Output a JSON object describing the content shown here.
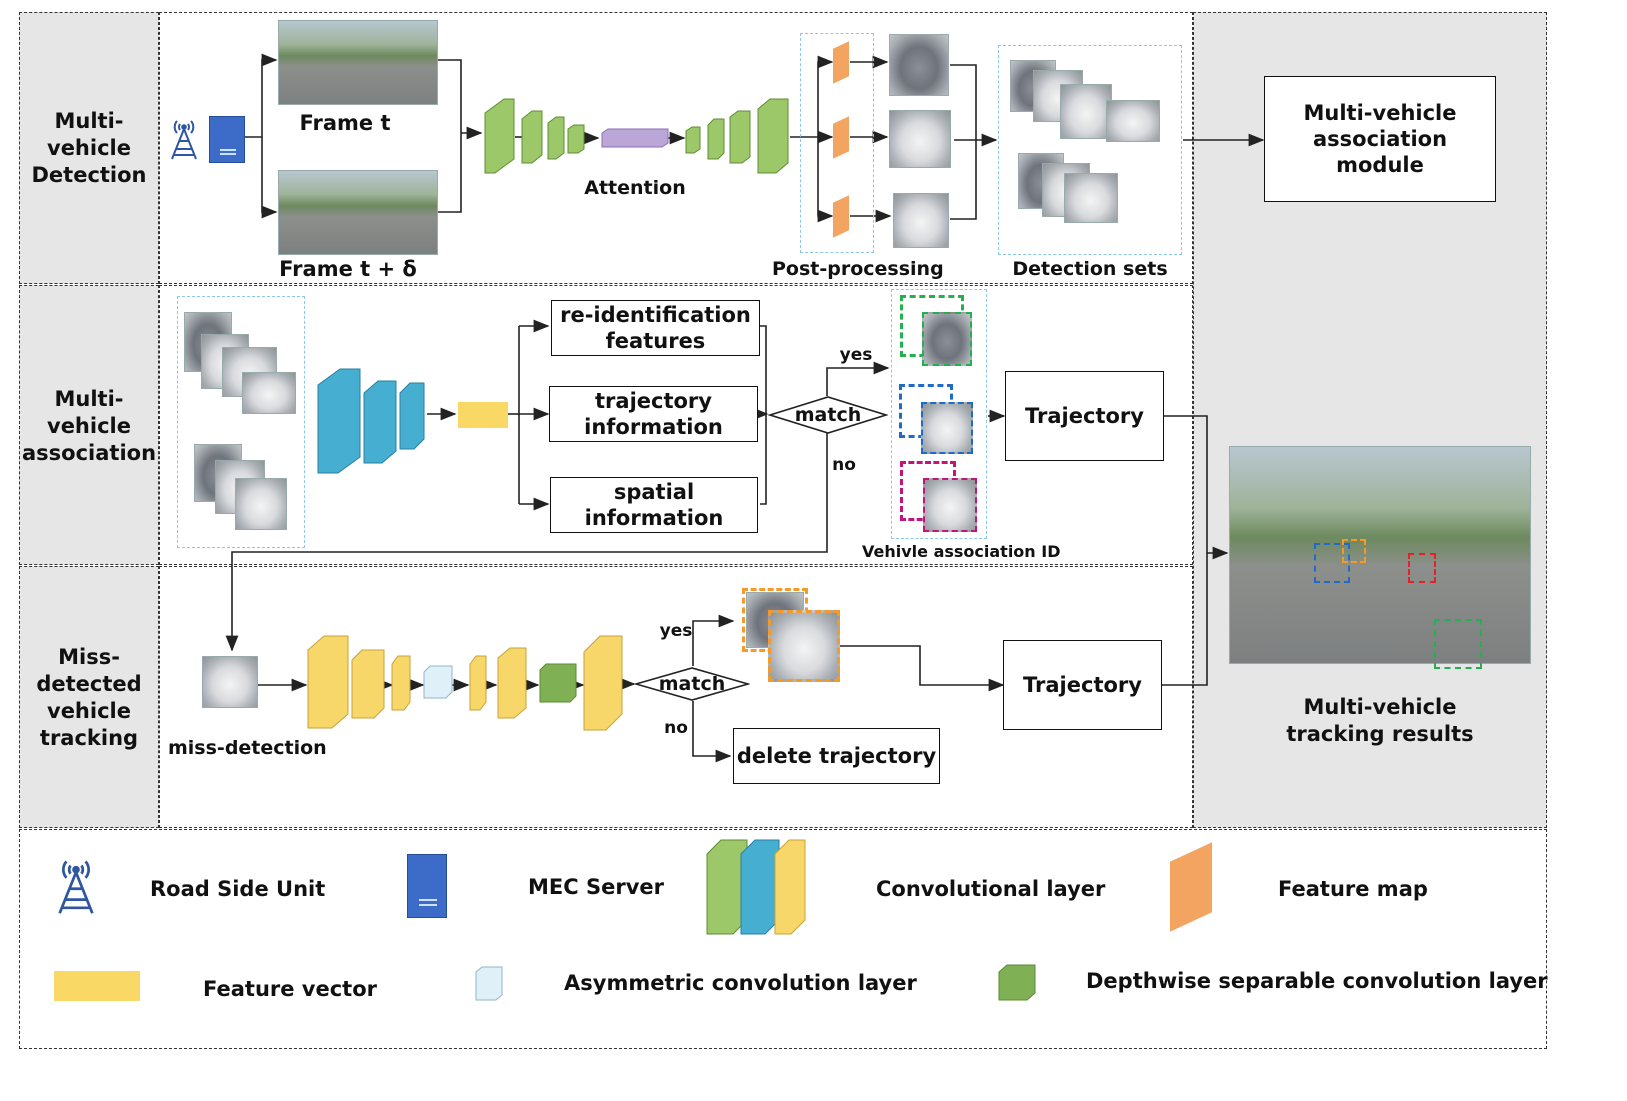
{
  "rows": {
    "detection": "Multi-vehicle Detection",
    "association": "Multi-vehicle association",
    "tracking": "Miss-detected vehicle tracking"
  },
  "detection": {
    "frame_t": "Frame t",
    "frame_t_delta": "Frame t + δ",
    "attention": "Attention",
    "post_processing": "Post-processing",
    "detection_sets": "Detection sets",
    "association_module": "Multi-vehicle association module"
  },
  "association": {
    "reid": "re-identification features",
    "trajectory_info": "trajectory information",
    "spatial_info": "spatial information",
    "match": "match",
    "yes": "yes",
    "no": "no",
    "trajectory": "Trajectory",
    "assoc_id": "Vehivle association ID"
  },
  "tracking": {
    "miss_detection": "miss-detection",
    "match": "match",
    "yes": "yes",
    "no": "no",
    "trajectory": "Trajectory",
    "delete": "delete trajectory"
  },
  "results": {
    "title": "Multi-vehicle tracking results"
  },
  "legend": {
    "rsu": "Road Side Unit",
    "mec": "MEC Server",
    "conv": "Convolutional layer",
    "feature_map": "Feature map",
    "feature_vector": "Feature vector",
    "asym": "Asymmetric convolution layer",
    "depthwise": "Depthwise separable convolution layer"
  },
  "colors": {
    "green_layer": "#8dbb5a",
    "blue_layer": "#3ea6c8",
    "yellow_layer": "#f7d66a",
    "feature_map": "#f3a461",
    "feature_vector": "#f9d865",
    "attention": "#b9a6d6",
    "panel_gray": "#e6e6e6",
    "dashed_blue": "#8cc7ec"
  }
}
